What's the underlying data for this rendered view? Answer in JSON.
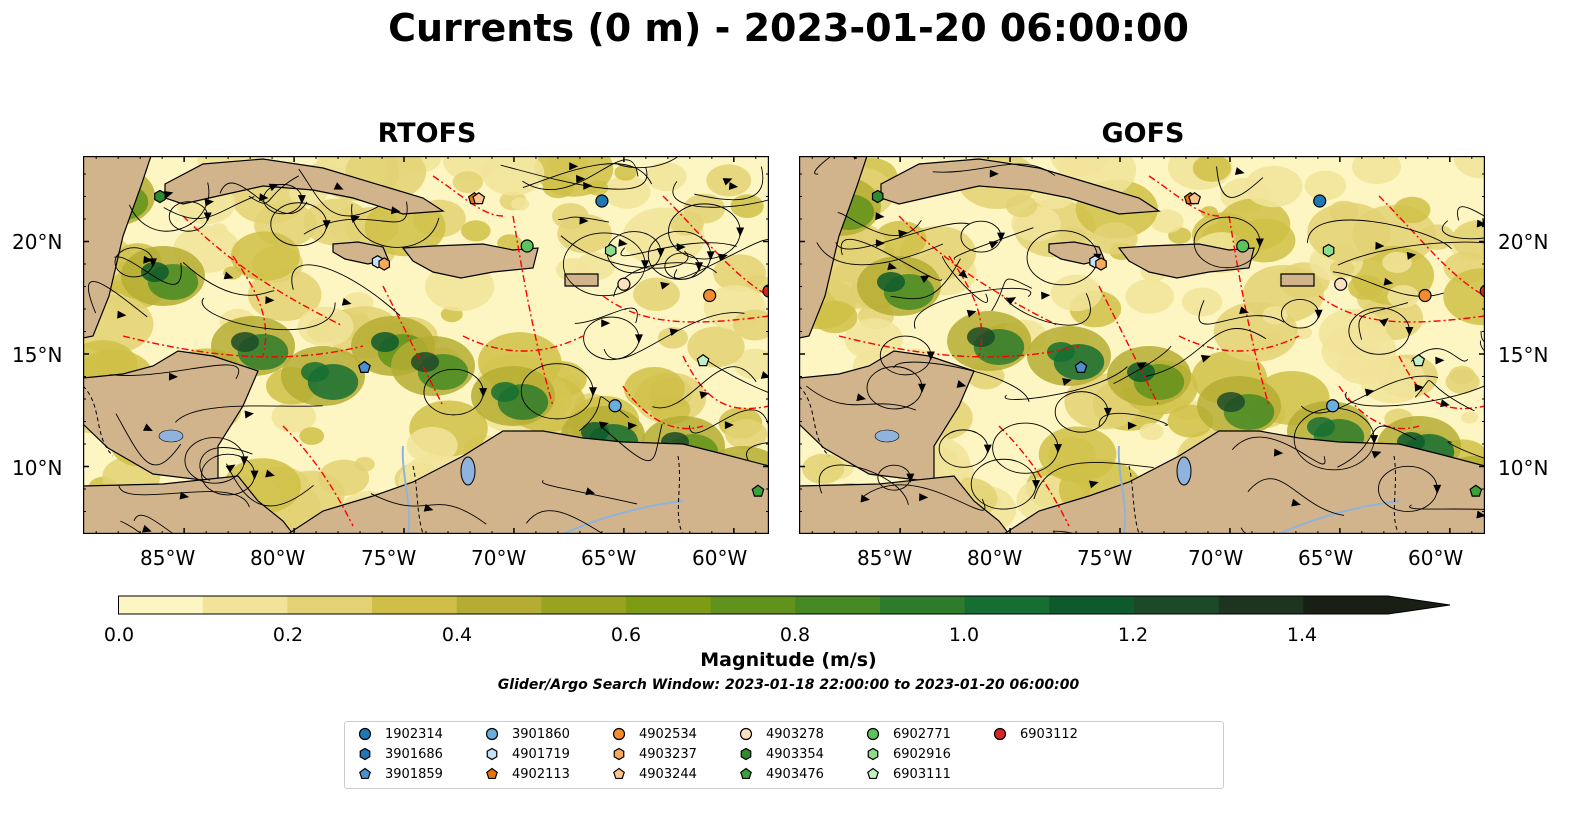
{
  "title": "Currents (0 m) - 2023-01-20 06:00:00",
  "panels": [
    {
      "title": "RTOFS"
    },
    {
      "title": "GOFS"
    }
  ],
  "lon_ticks": [
    "85°W",
    "80°W",
    "75°W",
    "70°W",
    "65°W",
    "60°W"
  ],
  "lat_ticks": [
    "20°N",
    "15°N",
    "10°N"
  ],
  "extent": {
    "lon_min": -89.6,
    "lon_max": -58.4,
    "lat_min": 7.0,
    "lat_max": 23.8
  },
  "colorbar": {
    "label": "Magnitude (m/s)",
    "ticks": [
      "0.0",
      "0.2",
      "0.4",
      "0.6",
      "0.8",
      "1.0",
      "1.2",
      "1.4"
    ],
    "min": 0.0,
    "max": 1.5,
    "extend": "max",
    "colors": [
      "#fdf6c2",
      "#f1e49a",
      "#e3d274",
      "#cfbf47",
      "#b5ad33",
      "#98a420",
      "#7e9c13",
      "#61931c",
      "#468924",
      "#2f7b2c",
      "#166e33",
      "#0e5a2d",
      "#1c4a28",
      "#1d3520",
      "#181f14"
    ]
  },
  "search_window": "Glider/Argo Search Window: 2023-01-18 22:00:00 to 2023-01-20 06:00:00",
  "platforms": [
    {
      "id": "1902314",
      "marker": "circle",
      "color": "#1f77b4",
      "lon": -66.0,
      "lat": 21.8
    },
    {
      "id": "3901686",
      "marker": "hexagon",
      "color": "#1f77b4",
      "lon": -58.2,
      "lat": 17.8
    },
    {
      "id": "3901859",
      "marker": "pentagon",
      "color": "#4a8fd0",
      "lon": -76.8,
      "lat": 14.4
    },
    {
      "id": "3901860",
      "marker": "circle",
      "color": "#6aaee0",
      "lon": -65.4,
      "lat": 12.7
    },
    {
      "id": "4901719",
      "marker": "hexagon",
      "color": "#c6e2f7",
      "lon": -76.2,
      "lat": 19.1
    },
    {
      "id": "4902113",
      "marker": "pentagon",
      "color": "#e6750f",
      "lon": -71.8,
      "lat": 21.9
    },
    {
      "id": "4902534",
      "marker": "circle",
      "color": "#f28c2e",
      "lon": -61.1,
      "lat": 17.6
    },
    {
      "id": "4903237",
      "marker": "hexagon",
      "color": "#f7a95c",
      "lon": -75.9,
      "lat": 19.0
    },
    {
      "id": "4903244",
      "marker": "pentagon",
      "color": "#fbc48c",
      "lon": -71.6,
      "lat": 21.9
    },
    {
      "id": "4903278",
      "marker": "circle",
      "color": "#fde0c0",
      "lon": -65.0,
      "lat": 18.1
    },
    {
      "id": "4903354",
      "marker": "hexagon",
      "color": "#2e8b2e",
      "lon": -86.1,
      "lat": 22.0
    },
    {
      "id": "4903476",
      "marker": "pentagon",
      "color": "#3aa13a",
      "lon": -58.9,
      "lat": 8.9
    },
    {
      "id": "6902771",
      "marker": "circle",
      "color": "#5cc25c",
      "lon": -69.4,
      "lat": 19.8
    },
    {
      "id": "6902916",
      "marker": "hexagon",
      "color": "#8fdc8f",
      "lon": -65.6,
      "lat": 19.6
    },
    {
      "id": "6903111",
      "marker": "pentagon",
      "color": "#c2f0c2",
      "lon": -61.4,
      "lat": 14.7
    },
    {
      "id": "6903112",
      "marker": "circle",
      "color": "#d62728",
      "lon": -58.4,
      "lat": 17.8
    }
  ],
  "colors": {
    "land": "#d2b48c",
    "lake": "#8fb3dd",
    "eez": "#ff0000",
    "streamline": "#000000",
    "legend_border": "#cccccc"
  }
}
